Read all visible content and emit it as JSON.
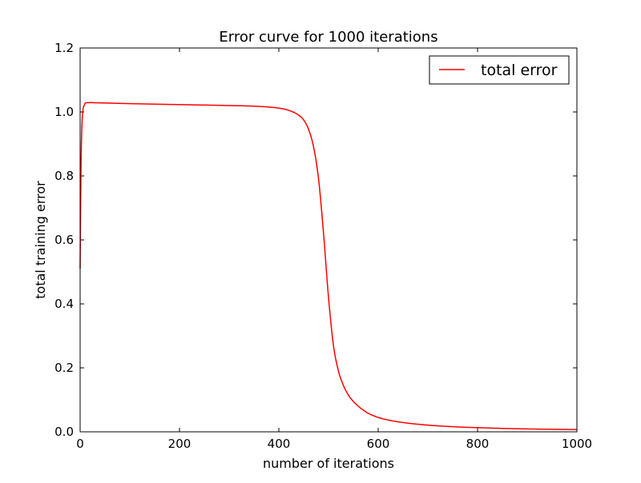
{
  "chart_data": {
    "type": "line",
    "title": "Error curve for 1000 iterations",
    "xlabel": "number of iterations",
    "ylabel": "total training error",
    "xlim": [
      0,
      1000
    ],
    "ylim": [
      0.0,
      1.2
    ],
    "xticks": [
      "0",
      "200",
      "400",
      "600",
      "800",
      "1000"
    ],
    "yticks": [
      "0.0",
      "0.2",
      "0.4",
      "0.6",
      "0.8",
      "1.0",
      "1.2"
    ],
    "grid": false,
    "legend_position": "top-right",
    "series": [
      {
        "name": "total error",
        "color": "#ff0000",
        "x": [
          0,
          1,
          2,
          4,
          6,
          8,
          10,
          15,
          20,
          50,
          100,
          200,
          300,
          350,
          400,
          420,
          440,
          450,
          460,
          470,
          480,
          490,
          500,
          510,
          520,
          530,
          540,
          550,
          560,
          570,
          580,
          600,
          620,
          650,
          700,
          750,
          800,
          900,
          1000
        ],
        "y": [
          0.51,
          0.7,
          0.85,
          0.97,
          1.01,
          1.02,
          1.027,
          1.029,
          1.029,
          1.028,
          1.026,
          1.023,
          1.02,
          1.018,
          1.012,
          1.005,
          0.99,
          0.975,
          0.945,
          0.89,
          0.79,
          0.62,
          0.42,
          0.27,
          0.19,
          0.145,
          0.115,
          0.095,
          0.08,
          0.068,
          0.058,
          0.045,
          0.037,
          0.029,
          0.021,
          0.016,
          0.013,
          0.009,
          0.007
        ]
      }
    ]
  }
}
